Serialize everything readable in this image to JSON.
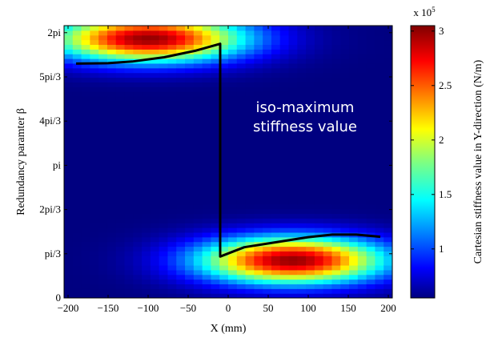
{
  "chart_data": {
    "type": "heatmap",
    "title": "",
    "xlabel": "X (mm)",
    "ylabel": "Redundancy paramter  β",
    "xlim": [
      -205,
      205
    ],
    "ylim_rad": [
      0,
      6.45
    ],
    "x_ticks": [
      {
        "value": -200,
        "label": "−200"
      },
      {
        "value": -150,
        "label": "−150"
      },
      {
        "value": -100,
        "label": "−100"
      },
      {
        "value": -50,
        "label": "−50"
      },
      {
        "value": 0,
        "label": "0"
      },
      {
        "value": 50,
        "label": "50"
      },
      {
        "value": 100,
        "label": "100"
      },
      {
        "value": 150,
        "label": "150"
      },
      {
        "value": 200,
        "label": "200"
      }
    ],
    "y_ticks": [
      {
        "value": 0,
        "label": "0"
      },
      {
        "value": 1.0472,
        "label": "pi/3"
      },
      {
        "value": 2.0944,
        "label": "2pi/3"
      },
      {
        "value": 3.1416,
        "label": "pi"
      },
      {
        "value": 4.1888,
        "label": "4pi/3"
      },
      {
        "value": 5.236,
        "label": "5pi/3"
      },
      {
        "value": 6.2832,
        "label": "2pi"
      }
    ],
    "colorbar": {
      "label": "Cartesian stiffness value in Y-direction (N/m)",
      "multiplier": "x 10",
      "multiplier_exp": "5",
      "range": [
        0.55,
        3.05
      ],
      "ticks": [
        {
          "value": 1,
          "label": "1"
        },
        {
          "value": 1.5,
          "label": "1.5"
        },
        {
          "value": 2,
          "label": "2"
        },
        {
          "value": 2.5,
          "label": "2.5"
        },
        {
          "value": 3,
          "label": "3"
        }
      ],
      "colormap": "jet"
    },
    "hotspots": [
      {
        "x": -100,
        "y": 6.15,
        "peak": 3.0
      },
      {
        "x": 80,
        "y": 0.9,
        "peak": 3.0
      }
    ],
    "iso_line": {
      "label": "iso-maximum stiffness value",
      "color": "#000000",
      "points": [
        [
          -190,
          5.55
        ],
        [
          -150,
          5.56
        ],
        [
          -120,
          5.6
        ],
        [
          -80,
          5.7
        ],
        [
          -40,
          5.86
        ],
        [
          -10,
          6.02
        ],
        [
          -10,
          0.98
        ],
        [
          20,
          1.2
        ],
        [
          60,
          1.32
        ],
        [
          100,
          1.44
        ],
        [
          130,
          1.5
        ],
        [
          160,
          1.5
        ],
        [
          190,
          1.45
        ]
      ]
    },
    "annotation": [
      "iso-maximum",
      "stiffness value"
    ]
  }
}
